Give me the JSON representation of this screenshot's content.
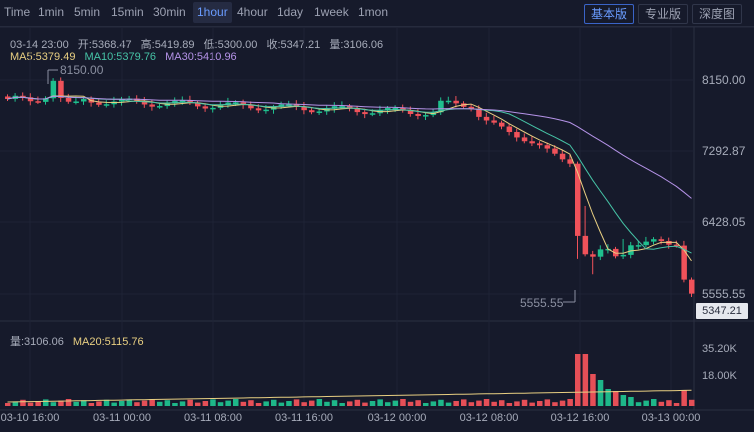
{
  "toolbar": {
    "intervals": [
      "Time",
      "1min",
      "5min",
      "15min",
      "30min",
      "1hour",
      "4hour",
      "1day",
      "1week",
      "1mon"
    ],
    "active_interval": "1hour",
    "modes": [
      "基本版",
      "专业版",
      "深度图"
    ],
    "active_mode": "基本版"
  },
  "info": {
    "date": "03-14 23:00",
    "open": "开:5368.47",
    "high": "高:5419.89",
    "low": "低:5300.00",
    "close": "收:5347.21",
    "volume": "量:3106.06",
    "ma5": "MA5:5379.49",
    "ma10": "MA10:5379.76",
    "ma30": "MA30:5410.96"
  },
  "volume_info": {
    "volume": "量:3106.06",
    "ma20": "MA20:5115.76"
  },
  "price_axis": [
    "8150.00",
    "7292.87",
    "6428.05",
    "5555.55"
  ],
  "current_price": "5347.21",
  "volume_axis": [
    "35.20K",
    "18.00K"
  ],
  "markers": {
    "high": "8150.00",
    "low": "5555.55"
  },
  "time_axis": [
    "03-10 16:00",
    "03-11 00:00",
    "03-11 08:00",
    "03-11 16:00",
    "03-12 00:00",
    "03-12 08:00",
    "03-12 16:00",
    "03-13 00:00"
  ],
  "colors": {
    "up": "#1fc08e",
    "down": "#f0525a",
    "ma5": "#e8cf82",
    "ma10": "#46c3a6",
    "ma30": "#b593e8",
    "accent": "#6a9cff"
  }
}
